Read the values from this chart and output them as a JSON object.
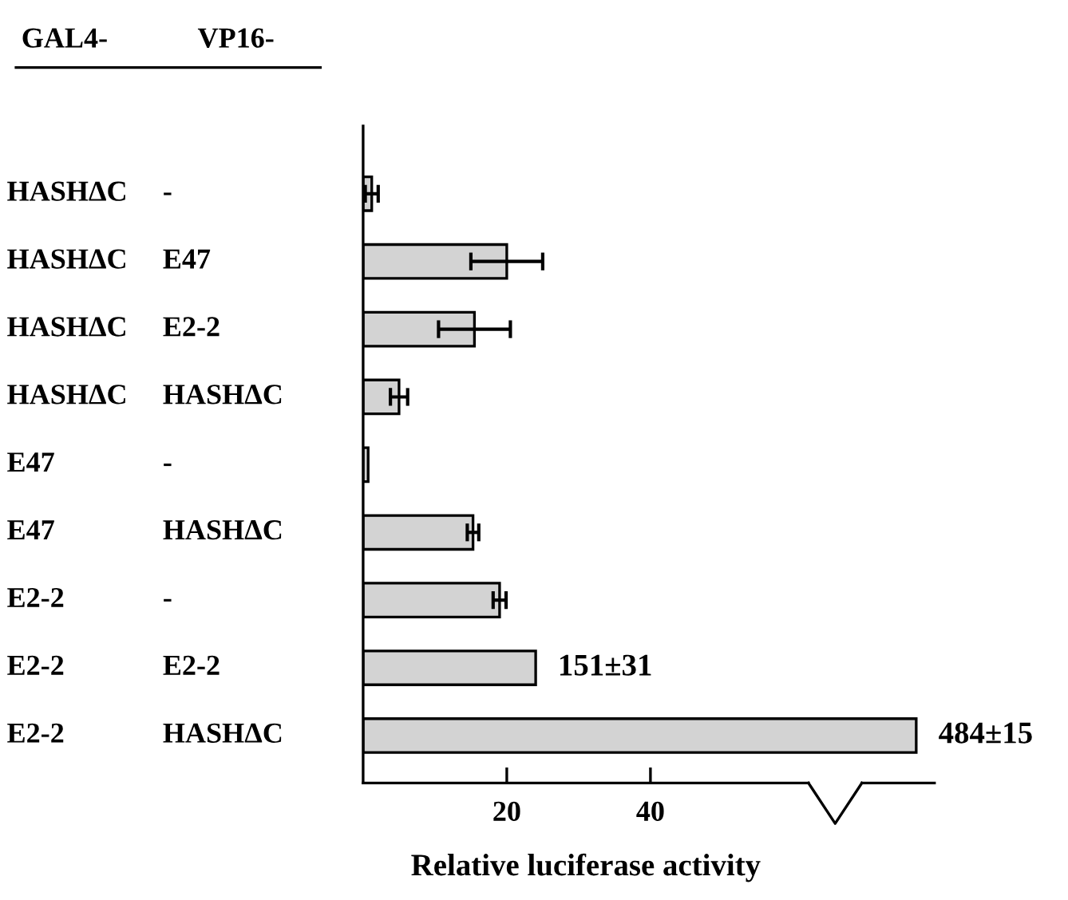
{
  "chart_data": [
    {
      "type": "bar",
      "orientation": "horizontal",
      "xlabel": "Relative luciferase activity",
      "annotations": [
        "GAL4-",
        "VP16-"
      ],
      "categories": [
        "HASHΔC -",
        "HASHΔC E47",
        "HASHΔC E2-2",
        "HASHΔC HASHΔC",
        "E47 -",
        "E47 HASHΔC",
        "E2-2 -",
        "E2-2 E2-2",
        "E2-2 HASHΔC"
      ],
      "values": [
        1.2,
        20,
        15.5,
        5,
        0.7,
        15.3,
        19,
        null,
        null
      ],
      "errors": [
        0.9,
        5,
        5,
        1.2,
        null,
        0.8,
        0.9,
        null,
        null
      ],
      "color": "#d3d3d3",
      "xlim": [
        0,
        62
      ],
      "xticks": [
        20,
        40
      ]
    },
    {
      "type": "bar",
      "orientation": "horizontal",
      "categories": [
        null,
        null,
        null,
        null,
        null,
        null,
        null,
        null,
        null
      ],
      "values": [
        null,
        null,
        null,
        null,
        null,
        null,
        null,
        151,
        484
      ],
      "value_labels": [
        null,
        null,
        null,
        null,
        null,
        null,
        null,
        "151±31",
        "484±15"
      ],
      "color": "#d3d3d3",
      "xlim": [
        0,
        500
      ]
    }
  ]
}
